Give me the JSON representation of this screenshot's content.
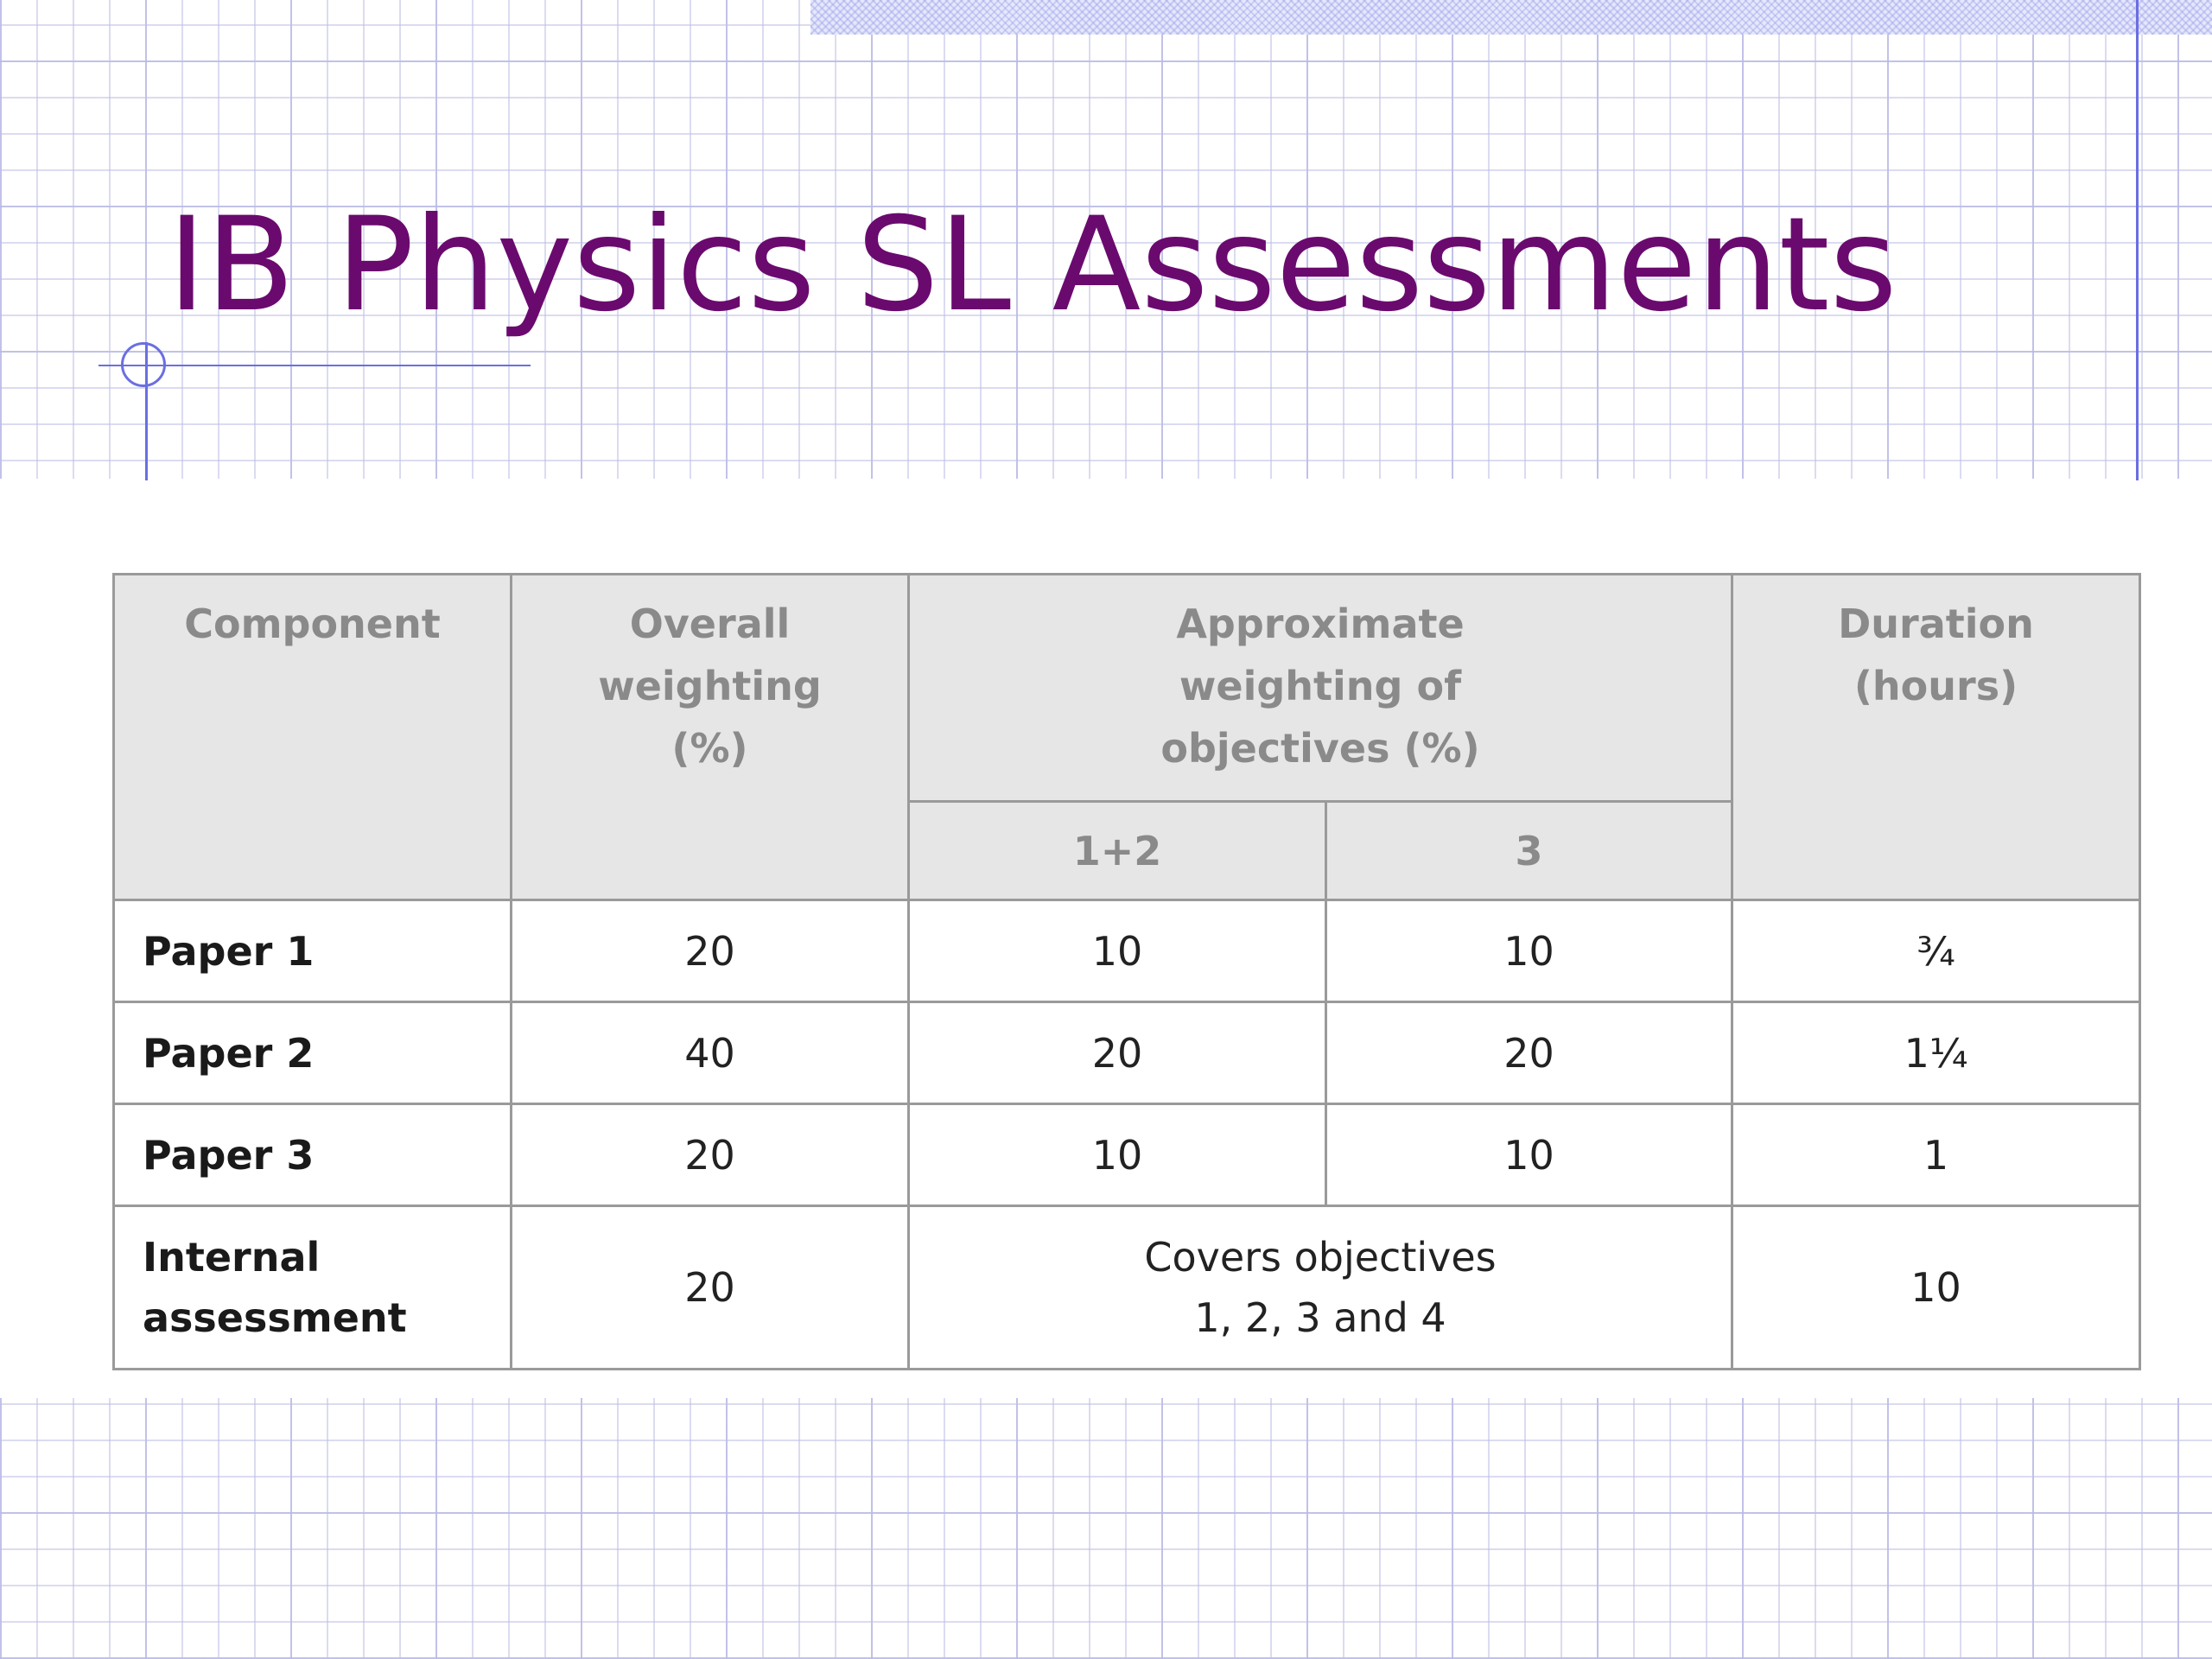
{
  "slide": {
    "title": "IB Physics SL Assessments"
  },
  "table": {
    "headers": {
      "component": "Component",
      "overall_weighting": "Overall weighting (%)",
      "approx_weighting": "Approximate weighting of objectives (%)",
      "duration": "Duration (hours)",
      "sub_obj_1_2": "1+2",
      "sub_obj_3": "3"
    },
    "rows": [
      {
        "component": "Paper 1",
        "overall": "20",
        "obj12": "10",
        "obj3": "10",
        "duration": "¾"
      },
      {
        "component": "Paper 2",
        "overall": "40",
        "obj12": "20",
        "obj3": "20",
        "duration": "1¼"
      },
      {
        "component": "Paper 3",
        "overall": "20",
        "obj12": "10",
        "obj3": "10",
        "duration": "1"
      },
      {
        "component": "Internal assessment",
        "overall": "20",
        "objectives_note": "Covers objectives 1, 2, 3 and 4",
        "duration": "10"
      }
    ]
  }
}
